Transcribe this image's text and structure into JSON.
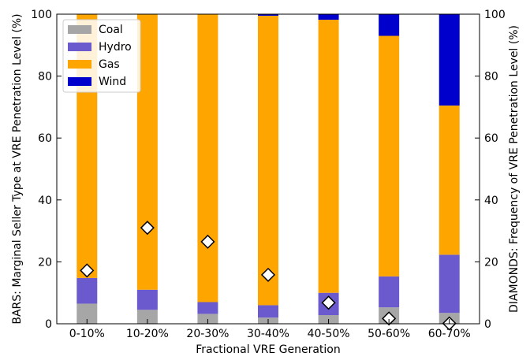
{
  "chart_data": {
    "type": "bar",
    "title": "",
    "xlabel": "Fractional VRE Generation",
    "ylabel": "BARS: Marginal Seller Type at VRE Penetration Level (%)",
    "ylabel_right": "DIAMONDS: Frequency of VRE Penetration Level (%)",
    "ylim": [
      0,
      100
    ],
    "y_ticks": [
      "0",
      "20",
      "40",
      "60",
      "80",
      "100"
    ],
    "y_ticks_right": [
      "0",
      "20",
      "40",
      "60",
      "80",
      "100"
    ],
    "stacked": true,
    "grid": false,
    "legend_position": "top-left",
    "categories": [
      "0-10%",
      "10-20%",
      "20-30%",
      "30-40%",
      "40-50%",
      "50-60%",
      "60-70%"
    ],
    "series": [
      {
        "name": "Coal",
        "color": "#a6a6a6",
        "values": [
          6.5,
          4.5,
          3.2,
          2.0,
          2.8,
          5.3,
          3.5
        ]
      },
      {
        "name": "Hydro",
        "color": "#6a5acd",
        "values": [
          8.3,
          6.5,
          3.8,
          4.0,
          7.2,
          10.0,
          18.8
        ]
      },
      {
        "name": "Gas",
        "color": "#ffa500",
        "values": [
          85.2,
          89.0,
          93.0,
          93.5,
          88.2,
          77.7,
          48.2
        ]
      },
      {
        "name": "Wind",
        "color": "#0000cd",
        "values": [
          0.0,
          0.0,
          0.0,
          0.5,
          1.8,
          7.0,
          29.5
        ]
      }
    ],
    "diamonds": {
      "axis": "right",
      "values": [
        17.2,
        31.0,
        26.5,
        15.8,
        6.8,
        1.7,
        0.1
      ]
    }
  }
}
